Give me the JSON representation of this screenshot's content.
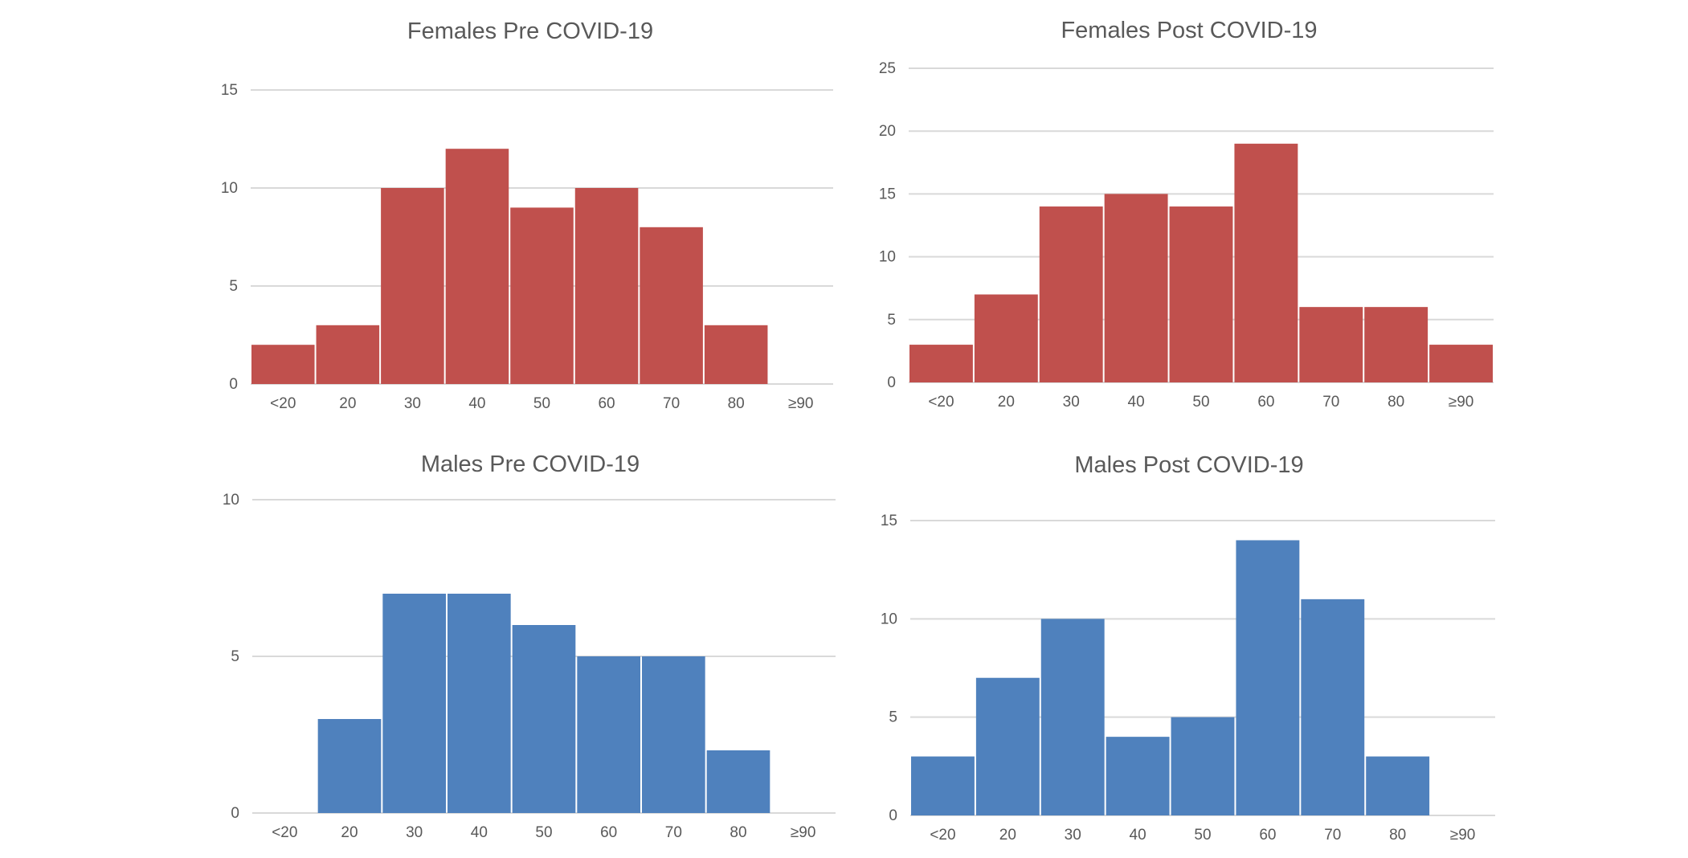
{
  "chart_data": [
    {
      "type": "bar",
      "title": "Females Pre COVID-19",
      "categories": [
        "<20",
        "20",
        "30",
        "40",
        "50",
        "60",
        "70",
        "80",
        "≥90"
      ],
      "values": [
        2,
        3,
        10,
        12,
        9,
        10,
        8,
        3,
        0
      ],
      "ylim": [
        0,
        15
      ],
      "yticks": [
        0,
        5,
        10,
        15
      ],
      "color": "#C0504D",
      "grid": true,
      "xlabel": "",
      "ylabel": ""
    },
    {
      "type": "bar",
      "title": "Females Post COVID-19",
      "categories": [
        "<20",
        "20",
        "30",
        "40",
        "50",
        "60",
        "70",
        "80",
        "≥90"
      ],
      "values": [
        3,
        7,
        14,
        15,
        14,
        19,
        6,
        6,
        3
      ],
      "ylim": [
        0,
        25
      ],
      "yticks": [
        0,
        5,
        10,
        15,
        20,
        25
      ],
      "color": "#C0504D",
      "grid": true,
      "xlabel": "",
      "ylabel": ""
    },
    {
      "type": "bar",
      "title": "Males Pre COVID-19",
      "categories": [
        "<20",
        "20",
        "30",
        "40",
        "50",
        "60",
        "70",
        "80",
        "≥90"
      ],
      "values": [
        0,
        3,
        7,
        7,
        6,
        5,
        5,
        2,
        0
      ],
      "ylim": [
        0,
        10
      ],
      "yticks": [
        0,
        5,
        10
      ],
      "color": "#4F81BD",
      "grid": true,
      "xlabel": "",
      "ylabel": ""
    },
    {
      "type": "bar",
      "title": "Males Post COVID-19",
      "categories": [
        "<20",
        "20",
        "30",
        "40",
        "50",
        "60",
        "70",
        "80",
        "≥90"
      ],
      "values": [
        3,
        7,
        10,
        4,
        5,
        14,
        11,
        3,
        0
      ],
      "ylim": [
        0,
        15
      ],
      "yticks": [
        0,
        5,
        10,
        15
      ],
      "color": "#4F81BD",
      "grid": true,
      "xlabel": "",
      "ylabel": ""
    }
  ]
}
